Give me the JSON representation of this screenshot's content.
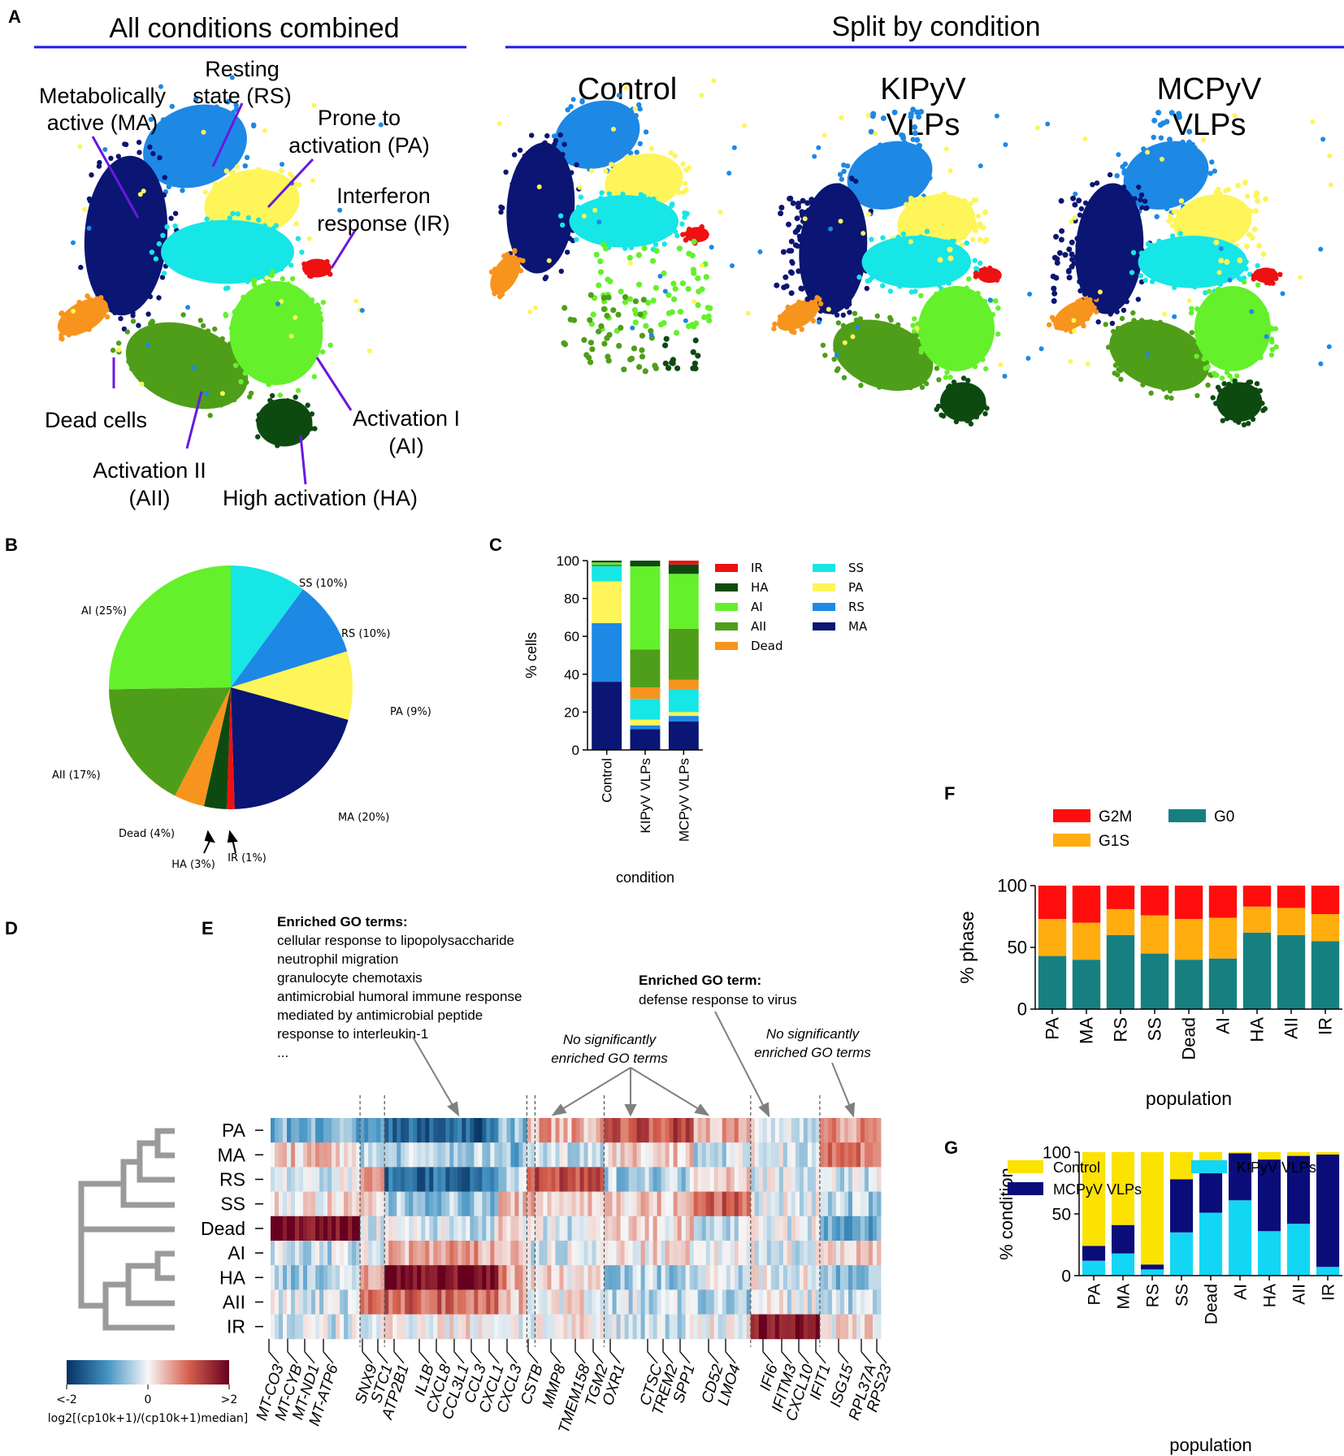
{
  "panel_letters": {
    "a": "A",
    "b": "B",
    "c": "C",
    "d": "D",
    "e": "E",
    "f": "F",
    "g": "G"
  },
  "umap": {
    "left_title": "All conditions combined",
    "right_title": "Split by condition",
    "conditions": [
      {
        "lines": [
          "Control"
        ]
      },
      {
        "lines": [
          "KIPyV",
          "VLPs"
        ]
      },
      {
        "lines": [
          "MCPyV",
          "VLPs"
        ]
      }
    ],
    "annotations": {
      "rs": [
        "Resting",
        "state (RS)"
      ],
      "ma": [
        "Metabolically",
        "active (MA)"
      ],
      "pa": [
        "Prone to",
        "activation (PA)"
      ],
      "ir": [
        "Interferon",
        "response (IR)"
      ],
      "dead": [
        "Dead cells"
      ],
      "ai": [
        "Activation I",
        "(AI)"
      ],
      "aii": [
        "Activation II",
        "(AII)"
      ],
      "ha": [
        "High activation (HA)"
      ]
    },
    "colors": {
      "MA": "#0b1573",
      "RS": "#1e88e5",
      "PA": "#fdf559",
      "SS": "#17e6e6",
      "AI": "#64f02b",
      "AII": "#4f9e19",
      "HA": "#0d4a10",
      "Dead": "#f7941d",
      "IR": "#ee1111"
    }
  },
  "chart_data": [
    {
      "panel": "B",
      "type": "pie",
      "slices": [
        {
          "label": "SS (10%)",
          "name": "SS",
          "value": 10,
          "color": "#17e6e6"
        },
        {
          "label": "RS (10%)",
          "name": "RS",
          "value": 10,
          "color": "#1e88e5"
        },
        {
          "label": "PA (9%)",
          "name": "PA",
          "value": 9,
          "color": "#fdf559"
        },
        {
          "label": "MA (20%)",
          "name": "MA",
          "value": 20,
          "color": "#0b1573"
        },
        {
          "label": "IR (1%)",
          "name": "IR",
          "value": 1,
          "color": "#ee1111"
        },
        {
          "label": "HA (3%)",
          "name": "HA",
          "value": 3,
          "color": "#0d4a10"
        },
        {
          "label": "Dead (4%)",
          "name": "Dead",
          "value": 4,
          "color": "#f7941d"
        },
        {
          "label": "AII (17%)",
          "name": "AII",
          "value": 17,
          "color": "#4f9e19"
        },
        {
          "label": "AI (25%)",
          "name": "AI",
          "value": 25,
          "color": "#64f02b"
        }
      ]
    },
    {
      "panel": "C",
      "type": "bar",
      "stacked": true,
      "categories": [
        "Control",
        "KIPyV VLPs",
        "MCPyV VLPs"
      ],
      "xlabel": "condition",
      "ylabel": "% cells",
      "ylim": [
        0,
        100
      ],
      "yticks": [
        "0",
        "20",
        "40",
        "60",
        "80",
        "100"
      ],
      "series": [
        {
          "name": "MA",
          "color": "#0b1573",
          "values": [
            36,
            11,
            15
          ]
        },
        {
          "name": "RS",
          "color": "#1e88e5",
          "values": [
            31,
            2,
            3
          ]
        },
        {
          "name": "PA",
          "color": "#fdf559",
          "values": [
            22,
            3,
            2
          ]
        },
        {
          "name": "SS",
          "color": "#17e6e6",
          "values": [
            8,
            11,
            12
          ]
        },
        {
          "name": "Dead",
          "color": "#f7941d",
          "values": [
            0,
            6,
            5
          ]
        },
        {
          "name": "AII",
          "color": "#4f9e19",
          "values": [
            1,
            20,
            27
          ]
        },
        {
          "name": "AI",
          "color": "#64f02b",
          "values": [
            1,
            44,
            29
          ]
        },
        {
          "name": "HA",
          "color": "#0d4a10",
          "values": [
            1,
            3,
            5
          ]
        },
        {
          "name": "IR",
          "color": "#ee1111",
          "values": [
            0,
            0,
            2
          ]
        }
      ],
      "legend": [
        [
          "IR",
          "HA",
          "AI",
          "AII",
          "Dead"
        ],
        [
          "SS",
          "PA",
          "RS",
          "MA"
        ]
      ]
    },
    {
      "panel": "F",
      "type": "bar",
      "stacked": true,
      "categories": [
        "PA",
        "MA",
        "RS",
        "SS",
        "Dead",
        "AI",
        "HA",
        "AII",
        "IR"
      ],
      "xlabel": "population",
      "ylabel": "% phase",
      "ylim": [
        0,
        100
      ],
      "yticks": [
        "0",
        "50",
        "100"
      ],
      "series": [
        {
          "name": "G0",
          "color": "#168080",
          "values": [
            43,
            40,
            60,
            45,
            40,
            41,
            62,
            60,
            55
          ]
        },
        {
          "name": "G1S",
          "color": "#ffad0f",
          "values": [
            30,
            30,
            21,
            31,
            33,
            33,
            21,
            22,
            22
          ]
        },
        {
          "name": "G2M",
          "color": "#ff0d0d",
          "values": [
            27,
            30,
            19,
            24,
            27,
            26,
            17,
            18,
            23
          ]
        }
      ],
      "legend": [
        "G2M",
        "G0",
        "G1S"
      ]
    },
    {
      "panel": "G",
      "type": "bar",
      "stacked": true,
      "categories": [
        "PA",
        "MA",
        "RS",
        "SS",
        "Dead",
        "AI",
        "HA",
        "AII",
        "IR"
      ],
      "xlabel": "population",
      "ylabel": "% condition",
      "ylim": [
        0,
        100
      ],
      "yticks": [
        "0",
        "50",
        "100"
      ],
      "series": [
        {
          "name": "KIPyV VLPs",
          "color": "#13d6f5",
          "values": [
            12,
            18,
            5,
            35,
            51,
            61,
            36,
            42,
            7
          ]
        },
        {
          "name": "MCPyV VLPs",
          "color": "#0a0c7a",
          "values": [
            12,
            23,
            4,
            43,
            36,
            38,
            58,
            55,
            91
          ]
        },
        {
          "name": "Control",
          "color": "#fce200",
          "values": [
            76,
            59,
            91,
            22,
            13,
            1,
            6,
            3,
            2
          ]
        }
      ],
      "legend": [
        "Control",
        "KIPyV VLPs",
        "MCPyV VLPs"
      ]
    },
    {
      "panel": "D-E",
      "type": "heatmap",
      "rows": [
        "PA",
        "MA",
        "RS",
        "SS",
        "Dead",
        "AI",
        "HA",
        "AII",
        "IR"
      ],
      "genes": [
        "MT-CO3",
        "MT-CYB",
        "MT-ND1",
        "MT-ATP6",
        "SNX9",
        "STC1",
        "ATP2B1",
        "IL1B",
        "CXCL8",
        "CCL3L1",
        "CCL3",
        "CXCL1",
        "CXCL3",
        "CSTB",
        "MMP8",
        "TMEM158",
        "TGM2",
        "OXR1",
        "CTSC",
        "TREM2",
        "SPP1",
        "CD52",
        "LMO4",
        "IFI6",
        "IFITM3",
        "CXCL10",
        "IFIT1",
        "ISG15",
        "RPL37A",
        "RPS23"
      ],
      "colorbar": {
        "min_label": "<-2",
        "mid_label": "0",
        "max_label": ">2",
        "label": "log2[(cp10k+1)/(cp10k+1)median]"
      },
      "go_blocks": {
        "block1_title": "Enriched GO terms:",
        "block1_terms": [
          "cellular response to lipopolysaccharide",
          "neutrophil migration",
          "granulocyte chemotaxis",
          "antimicrobial humoral immune response",
          "mediated by antimicrobial peptide",
          "response to interleukin-1",
          "..."
        ],
        "block2_title": "Enriched GO term:",
        "block2_terms": [
          "defense response to virus"
        ],
        "nosig1": [
          "No significantly",
          "enriched GO terms"
        ],
        "nosig2": [
          "No significantly",
          "enriched GO terms"
        ]
      }
    }
  ]
}
